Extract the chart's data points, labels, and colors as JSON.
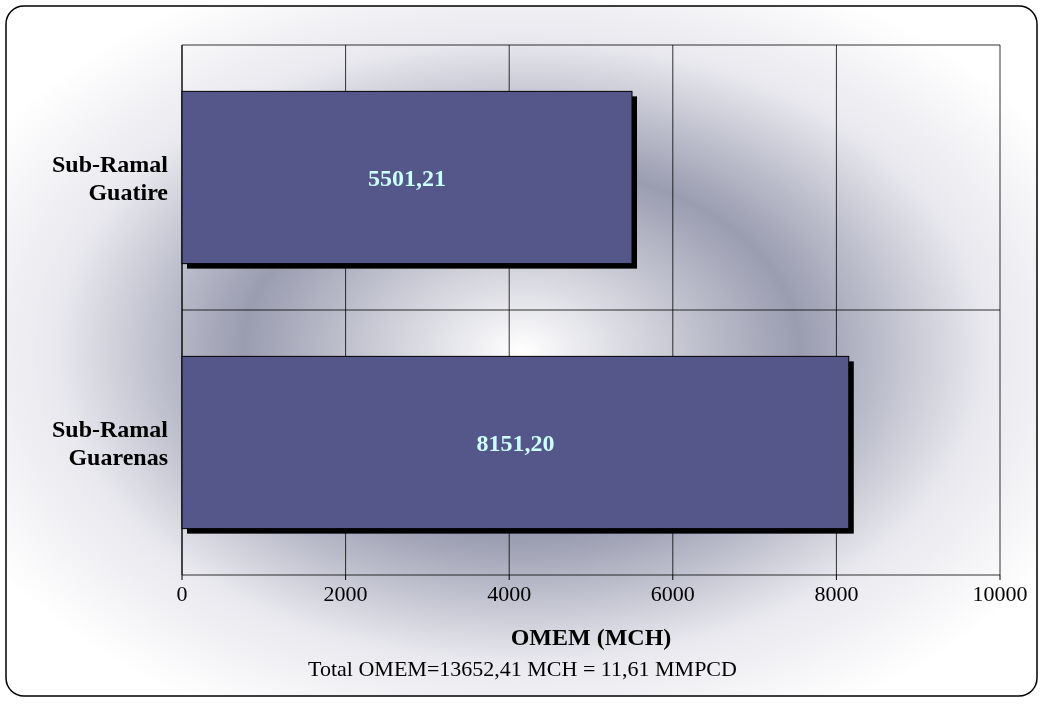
{
  "chart_data": {
    "type": "bar",
    "orientation": "horizontal",
    "categories": [
      "Sub-Ramal Guatire",
      "Sub-Ramal Guarenas"
    ],
    "values": [
      5501.21,
      8151.2
    ],
    "value_labels": [
      "5501,21",
      "8151,20"
    ],
    "color": "#55578a",
    "xlim": [
      0,
      10000
    ],
    "xticks": [
      0,
      2000,
      4000,
      6000,
      8000,
      10000
    ],
    "xlabel": "OMEM (MCH)",
    "grid": true,
    "annotations": [
      "Total OMEM=13652,41 MCH = 11,61 MMPCD"
    ]
  }
}
